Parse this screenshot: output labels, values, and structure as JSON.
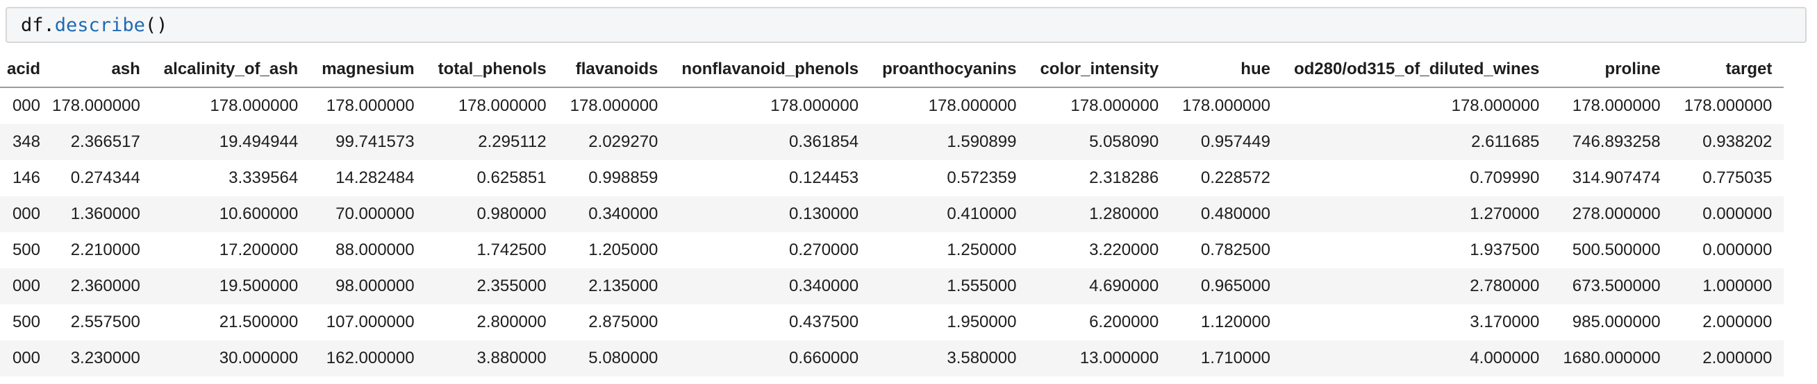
{
  "code_cell": {
    "tokens": [
      {
        "text": "df.",
        "type": "plain"
      },
      {
        "text": "describe",
        "type": "function"
      },
      {
        "text": "()",
        "type": "plain"
      }
    ]
  },
  "colors": {
    "function_name_blue": "#1f6ab3",
    "code_cell_background": "#f5f6f7",
    "code_cell_border": "#d7d7d7",
    "row_stripe": "#f5f5f5",
    "header_rule": "#9c9c9c",
    "table_text": "#1d1d1d"
  },
  "table": {
    "columns": [
      "acid",
      "ash",
      "alcalinity_of_ash",
      "magnesium",
      "total_phenols",
      "flavanoids",
      "nonflavanoid_phenols",
      "proanthocyanins",
      "color_intensity",
      "hue",
      "od280/od315_of_diluted_wines",
      "proline",
      "target"
    ],
    "rows": [
      [
        "000",
        "178.000000",
        "178.000000",
        "178.000000",
        "178.000000",
        "178.000000",
        "178.000000",
        "178.000000",
        "178.000000",
        "178.000000",
        "178.000000",
        "178.000000",
        "178.000000"
      ],
      [
        "348",
        "2.366517",
        "19.494944",
        "99.741573",
        "2.295112",
        "2.029270",
        "0.361854",
        "1.590899",
        "5.058090",
        "0.957449",
        "2.611685",
        "746.893258",
        "0.938202"
      ],
      [
        "146",
        "0.274344",
        "3.339564",
        "14.282484",
        "0.625851",
        "0.998859",
        "0.124453",
        "0.572359",
        "2.318286",
        "0.228572",
        "0.709990",
        "314.907474",
        "0.775035"
      ],
      [
        "000",
        "1.360000",
        "10.600000",
        "70.000000",
        "0.980000",
        "0.340000",
        "0.130000",
        "0.410000",
        "1.280000",
        "0.480000",
        "1.270000",
        "278.000000",
        "0.000000"
      ],
      [
        "500",
        "2.210000",
        "17.200000",
        "88.000000",
        "1.742500",
        "1.205000",
        "0.270000",
        "1.250000",
        "3.220000",
        "0.782500",
        "1.937500",
        "500.500000",
        "0.000000"
      ],
      [
        "000",
        "2.360000",
        "19.500000",
        "98.000000",
        "2.355000",
        "2.135000",
        "0.340000",
        "1.555000",
        "4.690000",
        "0.965000",
        "2.780000",
        "673.500000",
        "1.000000"
      ],
      [
        "500",
        "2.557500",
        "21.500000",
        "107.000000",
        "2.800000",
        "2.875000",
        "0.437500",
        "1.950000",
        "6.200000",
        "1.120000",
        "3.170000",
        "985.000000",
        "2.000000"
      ],
      [
        "000",
        "3.230000",
        "30.000000",
        "162.000000",
        "3.880000",
        "5.080000",
        "0.660000",
        "3.580000",
        "13.000000",
        "1.710000",
        "4.000000",
        "1680.000000",
        "2.000000"
      ]
    ]
  }
}
